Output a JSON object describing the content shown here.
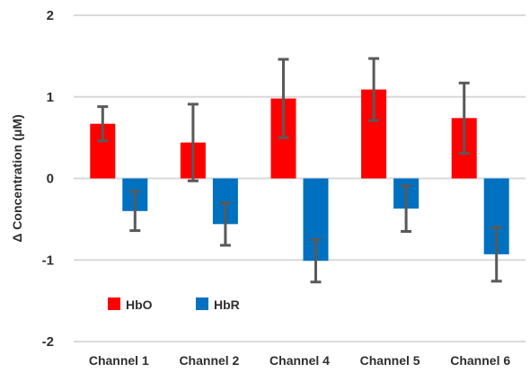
{
  "chart_data": {
    "type": "bar",
    "categories": [
      "Channel 1",
      "Channel 2",
      "Channel 4",
      "Channel 5",
      "Channel 6"
    ],
    "series": [
      {
        "name": "HbO",
        "color": "#ff0000",
        "values": [
          0.67,
          0.44,
          0.98,
          1.09,
          0.74
        ],
        "error": [
          0.21,
          0.47,
          0.48,
          0.38,
          0.43
        ]
      },
      {
        "name": "HbR",
        "color": "#0070c0",
        "values": [
          -0.4,
          -0.56,
          -1.01,
          -0.37,
          -0.93
        ],
        "error": [
          0.24,
          0.26,
          0.26,
          0.28,
          0.33
        ]
      }
    ],
    "ylabel": "Δ Concentration (μM)",
    "xlabel": "",
    "title": "",
    "ylim": [
      -2,
      2
    ],
    "yticks": [
      "2",
      "1",
      "0",
      "-1",
      "-2"
    ],
    "ytick_values": [
      2,
      1,
      0,
      -1,
      -2
    ],
    "grid": true,
    "legend_position": "bottom-left",
    "error_bar_color": "#595959",
    "grid_color": "#d9d9d9"
  }
}
